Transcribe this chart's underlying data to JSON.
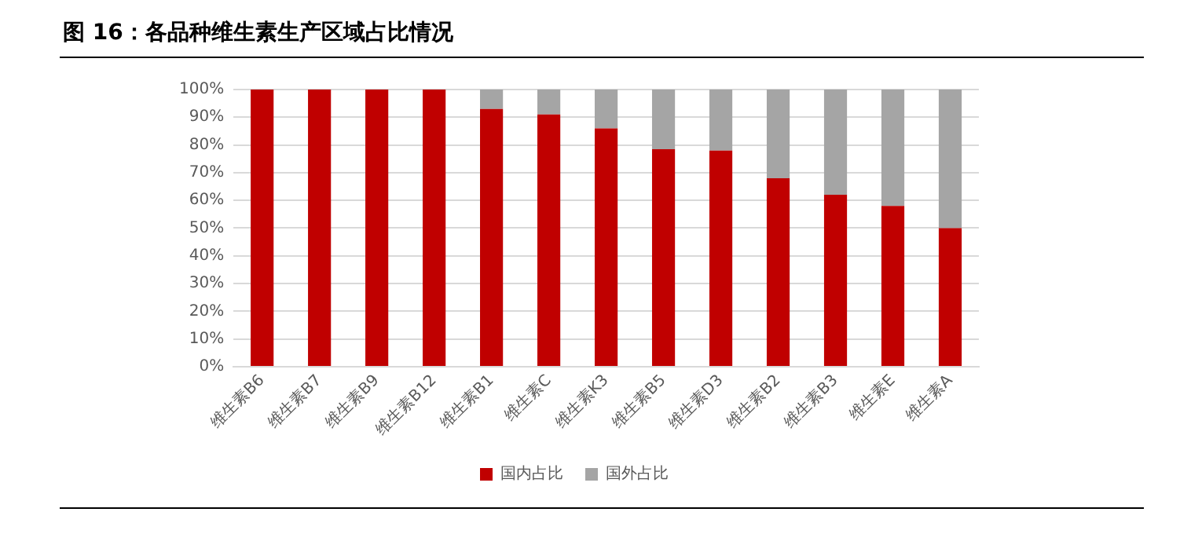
{
  "chart_data": {
    "type": "bar",
    "title": "图 16：各品种维生素生产区域占比情况",
    "categories": [
      "维生素B6",
      "维生素B7",
      "维生素B9",
      "维生素B12",
      "维生素B1",
      "维生素C",
      "维生素K3",
      "维生素B5",
      "维生素D3",
      "维生素B2",
      "维生素B3",
      "维生素E",
      "维生素A"
    ],
    "series": [
      {
        "name": "国内占比",
        "color": "#c00000",
        "values": [
          100,
          100,
          100,
          100,
          93,
          91,
          86,
          78.5,
          78,
          68,
          62,
          58,
          50
        ]
      },
      {
        "name": "国外占比",
        "color": "#a5a5a5",
        "values": [
          0,
          0,
          0,
          0,
          7,
          9,
          14,
          21.5,
          22,
          32,
          38,
          42,
          50
        ]
      }
    ],
    "stacked": true,
    "ylim": [
      0,
      100
    ],
    "yticks": [
      {
        "value": 0,
        "label": "0%"
      },
      {
        "value": 10,
        "label": "10%"
      },
      {
        "value": 20,
        "label": "20%"
      },
      {
        "value": 30,
        "label": "30%"
      },
      {
        "value": 40,
        "label": "40%"
      },
      {
        "value": 50,
        "label": "50%"
      },
      {
        "value": 60,
        "label": "60%"
      },
      {
        "value": 70,
        "label": "70%"
      },
      {
        "value": 80,
        "label": "80%"
      },
      {
        "value": 90,
        "label": "90%"
      },
      {
        "value": 100,
        "label": "100%"
      }
    ],
    "grid": "y",
    "legend": "bottom"
  }
}
